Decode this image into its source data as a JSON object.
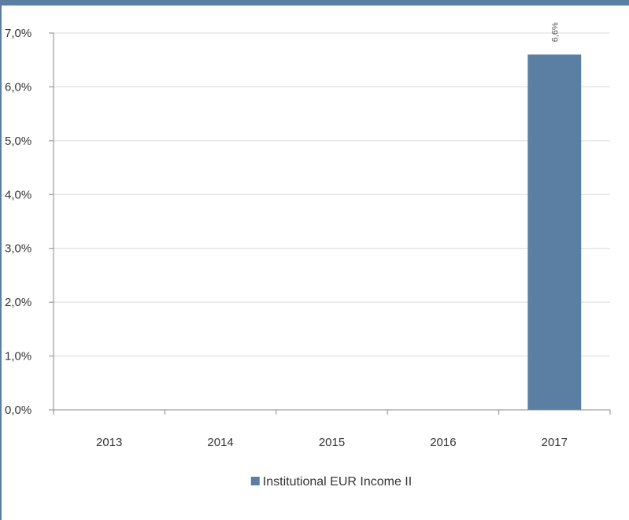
{
  "chart_data": {
    "type": "bar",
    "categories": [
      "2013",
      "2014",
      "2015",
      "2016",
      "2017"
    ],
    "series": [
      {
        "name": "Institutional EUR Income II",
        "values": [
          null,
          null,
          null,
          null,
          6.6
        ],
        "data_labels": [
          "",
          "",
          "",
          "",
          "6,6%"
        ],
        "color": "#5a7fa3"
      }
    ],
    "y_ticks": [
      "0,0%",
      "1,0%",
      "2,0%",
      "3,0%",
      "4,0%",
      "5,0%",
      "6,0%",
      "7,0%"
    ],
    "ylim": [
      0,
      7
    ],
    "title": "",
    "xlabel": "",
    "ylabel": "",
    "grid": true,
    "legend_position": "bottom-center"
  },
  "colors": {
    "frame": "#5a7fa3",
    "grid": "#d9d9d9",
    "axis": "#888888"
  }
}
